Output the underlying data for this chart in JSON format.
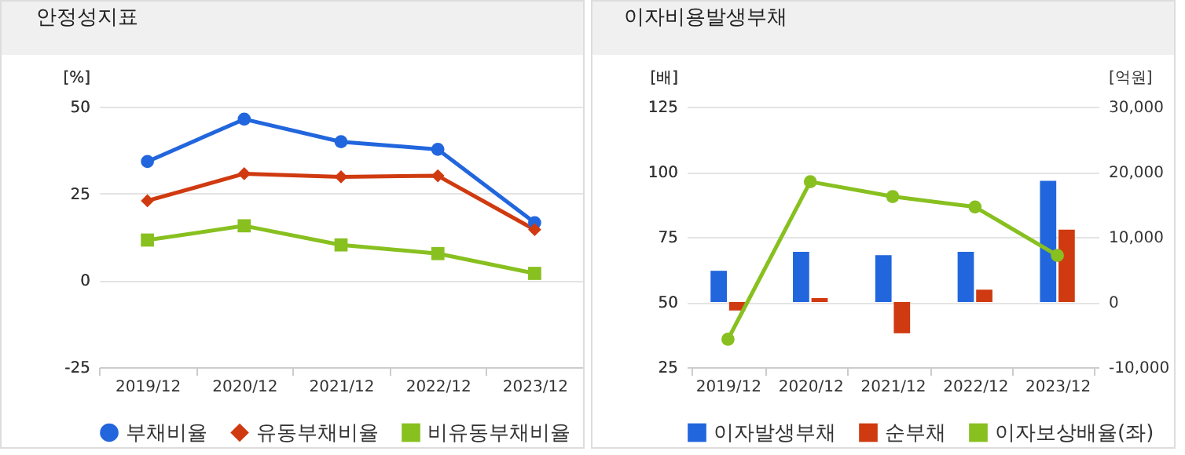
{
  "chart_data": [
    {
      "type": "line",
      "title": "안정성지표",
      "ylabel": "[%]",
      "categories": [
        "2019/12",
        "2020/12",
        "2021/12",
        "2022/12",
        "2023/12"
      ],
      "ylim": [
        -25,
        50
      ],
      "yticks": [
        -25,
        0,
        25,
        50
      ],
      "grid": "y",
      "legend": "bottom",
      "series": [
        {
          "name": "부채비율",
          "color": "#2266dd",
          "marker": "circle",
          "values": [
            34.2,
            46.4,
            39.9,
            37.7,
            16.6
          ]
        },
        {
          "name": "유동부채비율",
          "color": "#d03a10",
          "marker": "diamond",
          "values": [
            22.9,
            30.7,
            29.8,
            30.1,
            14.6
          ]
        },
        {
          "name": "비유동부채비율",
          "color": "#88c020",
          "marker": "square",
          "values": [
            11.6,
            15.7,
            10.2,
            7.7,
            2.0
          ]
        }
      ]
    },
    {
      "type": "bar",
      "title": "이자비용발생부채",
      "ylabel": "[배]",
      "y2label": "[억원]",
      "categories": [
        "2019/12",
        "2020/12",
        "2021/12",
        "2022/12",
        "2023/12"
      ],
      "ylim": [
        25,
        125
      ],
      "yticks": [
        25,
        50,
        75,
        100,
        125
      ],
      "y2lim": [
        -10000,
        30000
      ],
      "y2ticks": [
        {
          "value": -10000,
          "label": "-10,000"
        },
        0,
        {
          "value": 10000,
          "label": "10,000"
        },
        {
          "value": 20000,
          "label": "20,000"
        },
        {
          "value": 30000,
          "label": "30,000"
        }
      ],
      "grid": "y",
      "legend": "bottom",
      "series": [
        {
          "name": "이자발생부채",
          "color": "#2266dd",
          "axis": "y2",
          "values": [
            4800,
            7700,
            7200,
            7700,
            18600
          ]
        },
        {
          "name": "순부채",
          "color": "#d03a10",
          "axis": "y2",
          "values": [
            -1300,
            600,
            -4800,
            1900,
            11100
          ]
        },
        {
          "name": "이자보상배율(좌)",
          "color": "#88c020",
          "type": "line",
          "marker": "circle",
          "values": [
            35.7,
            96.2,
            90.5,
            86.5,
            67.9
          ]
        }
      ]
    }
  ]
}
